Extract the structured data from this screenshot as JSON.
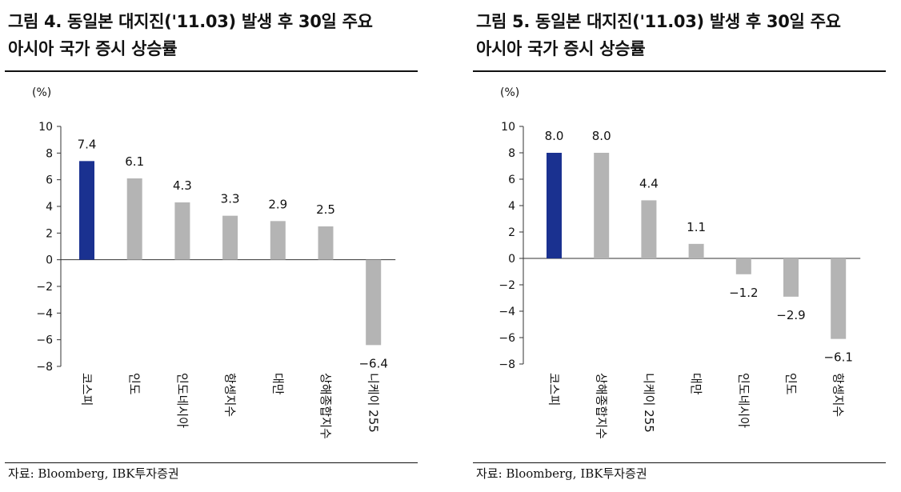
{
  "charts": [
    {
      "title_line1": "그림 4. 동일본 대지진('11.03) 발생 후 30일 주요",
      "title_line2": "아시아 국가 증시 상승률",
      "unit": "(%)",
      "source": "자료: Bloomberg, IBK투자증권",
      "chart_data": {
        "type": "bar",
        "categories": [
          "코스피",
          "인도",
          "인도네시아",
          "항셍지수",
          "대만",
          "상해종합지수",
          "니케이 255"
        ],
        "values": [
          7.4,
          6.1,
          4.3,
          3.3,
          2.9,
          2.5,
          -6.4
        ],
        "data_labels": [
          "7.4",
          "6.1",
          "4.3",
          "3.3",
          "2.9",
          "2.5",
          "−6.4"
        ],
        "yticks": [
          "10",
          "8",
          "6",
          "4",
          "2",
          "0",
          "−2",
          "−4",
          "−6",
          "−8"
        ],
        "ylim": [
          -8,
          10
        ],
        "highlight_index": 0,
        "colors": {
          "highlight": "#1a3190",
          "default": "#b4b4b4"
        },
        "grid": false
      }
    },
    {
      "title_line1": "그림 5. 동일본 대지진('11.03) 발생 후 30일 주요",
      "title_line2": "아시아 국가 증시 상승률",
      "unit": "(%)",
      "source": "자료: Bloomberg, IBK투자증권",
      "chart_data": {
        "type": "bar",
        "categories": [
          "코스피",
          "상해종합지수",
          "니케이 255",
          "대만",
          "인도네시아",
          "인도",
          "항셍지수"
        ],
        "values": [
          8.0,
          8.0,
          4.4,
          1.1,
          -1.2,
          -2.9,
          -6.1
        ],
        "data_labels": [
          "8.0",
          "8.0",
          "4.4",
          "1.1",
          "−1.2",
          "−2.9",
          "−6.1"
        ],
        "yticks": [
          "10",
          "8",
          "6",
          "4",
          "2",
          "0",
          "−2",
          "−4",
          "−6",
          "−8"
        ],
        "ylim": [
          -8,
          10
        ],
        "highlight_index": 0,
        "colors": {
          "highlight": "#1a3190",
          "default": "#b4b4b4"
        },
        "grid": false
      }
    }
  ]
}
